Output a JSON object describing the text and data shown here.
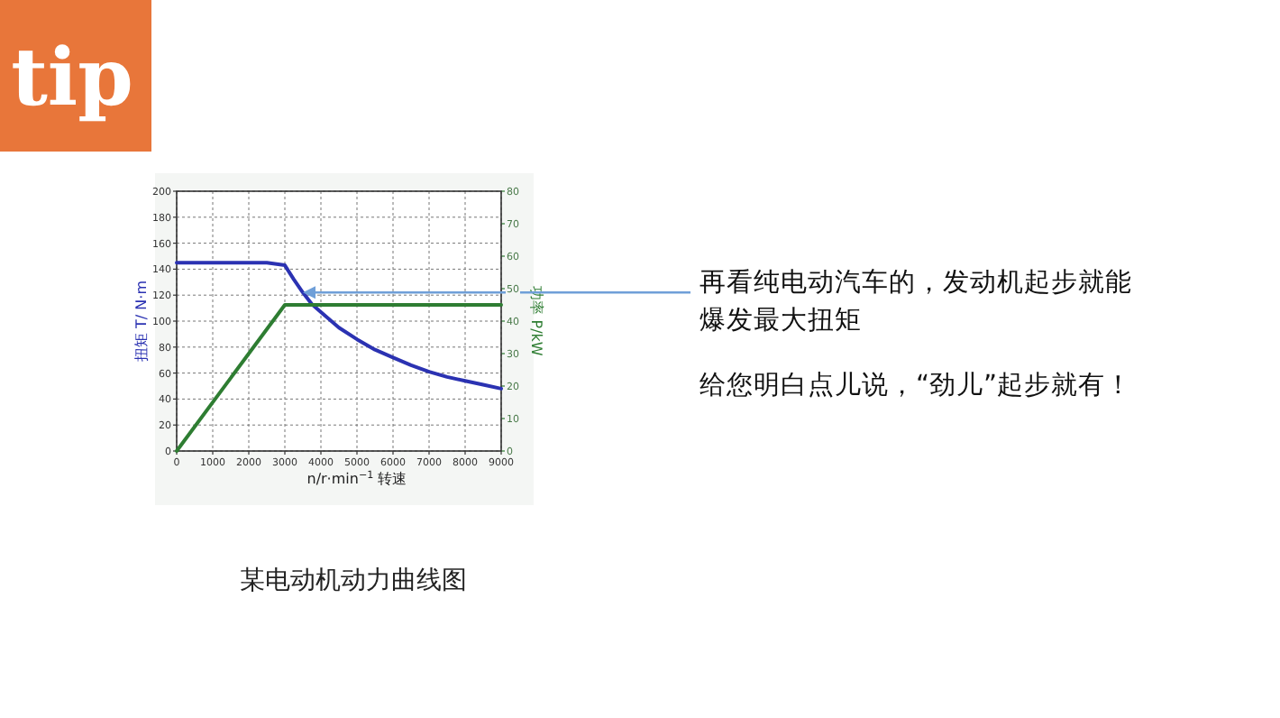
{
  "chart_data": {
    "type": "line",
    "title": "某电动机动力曲线图",
    "xlabel": "n/r·min$^{−1}$ 转速",
    "ylabel": "扭矩 T/ N·m",
    "y2label": "功率 P/kW",
    "xlim": [
      0,
      9000
    ],
    "xticks": [
      0,
      1000,
      2000,
      3000,
      4000,
      5000,
      6000,
      7000,
      8000,
      9000
    ],
    "ylim": [
      0,
      200
    ],
    "yticks": [
      0,
      20,
      40,
      60,
      80,
      100,
      120,
      140,
      160,
      180,
      200
    ],
    "y2lim": [
      0,
      80
    ],
    "y2ticks": [
      0,
      10,
      20,
      30,
      40,
      50,
      60,
      70,
      80
    ],
    "grid": true,
    "marker": "none",
    "line_style": "solid",
    "series": [
      {
        "color": "#2b32b2",
        "x": [
          0,
          1000,
          2000,
          2500,
          3000,
          3250,
          3500,
          3750,
          4000,
          4500,
          5000,
          5500,
          6000,
          6500,
          7000,
          7500,
          8000,
          8500,
          9000
        ],
        "values": [
          145,
          145,
          145,
          145,
          143,
          132,
          122,
          113,
          107,
          95,
          86,
          78,
          72,
          66,
          61,
          57,
          54,
          51,
          48
        ]
      },
      {
        "color": "#2e7d32",
        "axis": "y2",
        "x": [
          0,
          3000,
          9000
        ],
        "values": [
          0,
          45,
          45
        ]
      }
    ],
    "annotations": [
      {
        "text": "再看纯电动汽车的，发动机起步就能爆发最大扭矩",
        "x": 3500,
        "y": 122
      },
      "给您明白点儿说，“劲儿”起步就有！",
      "tip"
    ]
  }
}
